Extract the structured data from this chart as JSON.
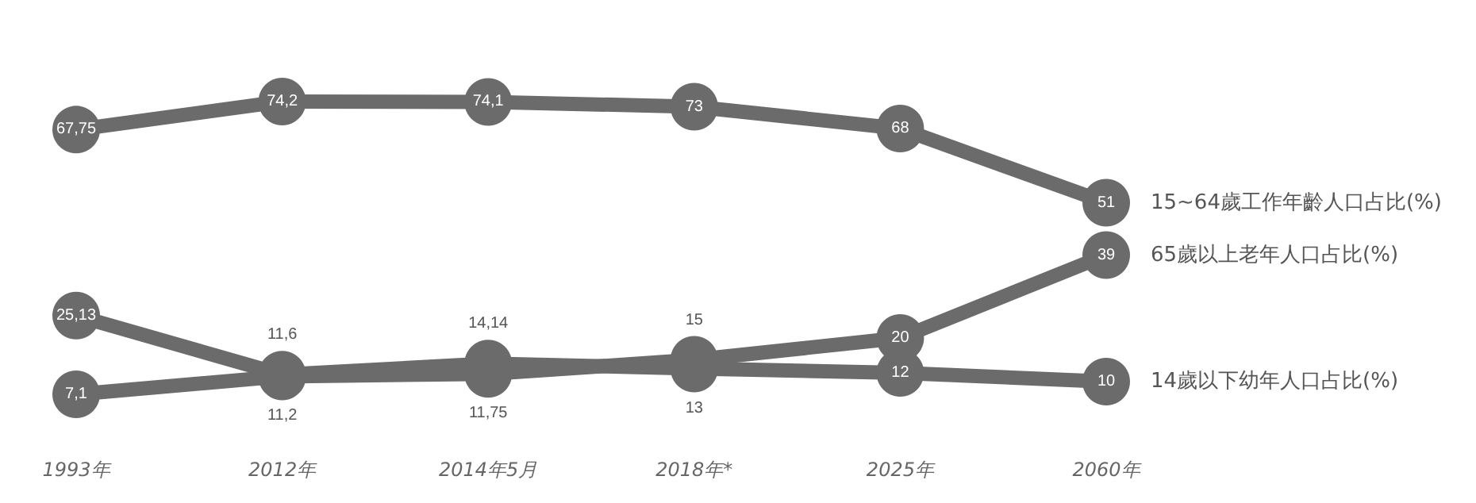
{
  "chart_data": {
    "type": "line",
    "categories": [
      "1993年",
      "2012年",
      "2014年5月",
      "2018年*",
      "2025年",
      "2060年"
    ],
    "series": [
      {
        "name": "15~64歲工作年齡人口占比(%)",
        "color": "#6b6b6b",
        "values": [
          67.75,
          74.2,
          74.1,
          73,
          68,
          51
        ],
        "value_labels": [
          "67,75",
          "74,2",
          "74,1",
          "73",
          "68",
          "51"
        ]
      },
      {
        "name": "65歲以上老年人口占比(%)",
        "color": "#6b6b6b",
        "values": [
          7.1,
          11.2,
          11.75,
          15,
          20,
          39
        ],
        "value_labels": [
          "7,1",
          "11,2",
          "11,75",
          "15",
          "20",
          "39"
        ]
      },
      {
        "name": "14歲以下幼年人口占比(%)",
        "color": "#6b6b6b",
        "values": [
          25.13,
          11.6,
          14.14,
          13,
          12,
          10
        ],
        "value_labels": [
          "25,13",
          "11,6",
          "14,14",
          "13",
          "12",
          "10"
        ]
      }
    ],
    "marker": "circle",
    "legend": false,
    "grid": false
  }
}
